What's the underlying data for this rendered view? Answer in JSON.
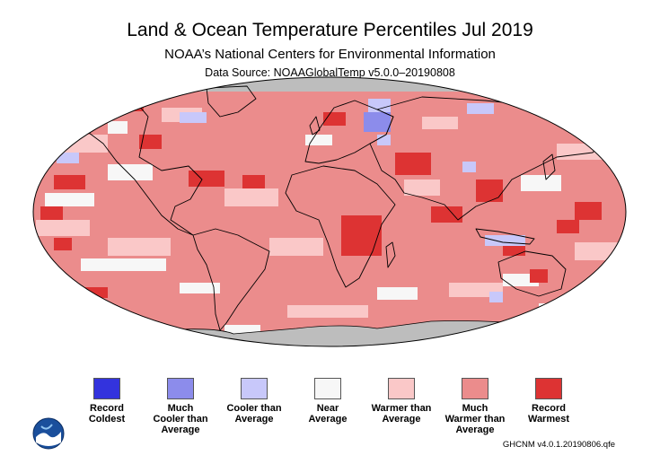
{
  "title": "Land & Ocean Temperature Percentiles Jul 2019",
  "subtitle": "NOAA’s National Centers for Environmental Information",
  "data_source": "Data Source: NOAAGlobalTemp v5.0.0–20190808",
  "footer": "GHCNM v4.0.1.20190806.qfe",
  "logo_name": "noaa-logo",
  "legend": [
    {
      "line1": "Record",
      "line2": "Coldest",
      "line3": "",
      "color": "#3333dd"
    },
    {
      "line1": "Much",
      "line2": "Cooler than",
      "line3": "Average",
      "color": "#8c8ceb"
    },
    {
      "line1": "Cooler than",
      "line2": "Average",
      "line3": "",
      "color": "#c8c8fa"
    },
    {
      "line1": "Near",
      "line2": "Average",
      "line3": "",
      "color": "#f7f7f7"
    },
    {
      "line1": "Warmer than",
      "line2": "Average",
      "line3": "",
      "color": "#fac8c8"
    },
    {
      "line1": "Much",
      "line2": "Warmer than",
      "line3": "Average",
      "color": "#eb8c8c"
    },
    {
      "line1": "Record",
      "line2": "Warmest",
      "line3": "",
      "color": "#dd3333"
    }
  ],
  "map_colors": {
    "ocean_base": "#eb8c8c",
    "no_data": "#bdbdbd",
    "outline": "#000000"
  }
}
